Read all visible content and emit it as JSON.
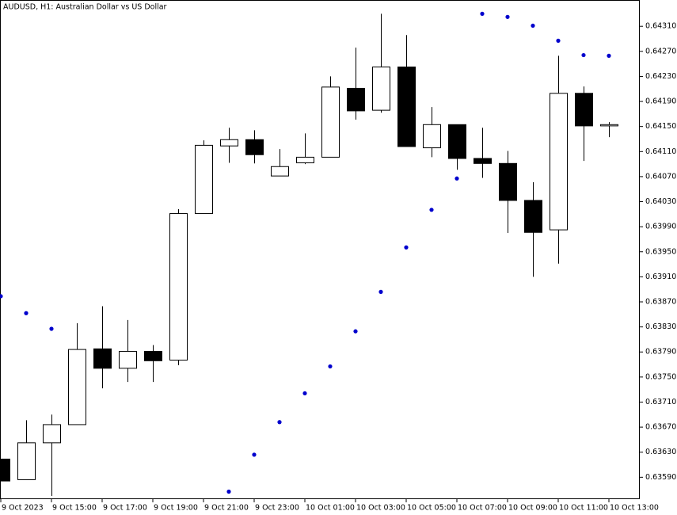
{
  "chart_data": {
    "type": "candlestick",
    "title": "AUDUSD, H1:  Australian Dollar vs US Dollar",
    "categories": [
      "9 Oct 2023",
      null,
      "9 Oct 15:00",
      null,
      "9 Oct 17:00",
      null,
      "9 Oct 19:00",
      null,
      "9 Oct 21:00",
      null,
      "9 Oct 23:00",
      null,
      "10 Oct 01:00",
      null,
      "10 Oct 03:00",
      null,
      "10 Oct 05:00",
      null,
      "10 Oct 07:00",
      null,
      "10 Oct 09:00",
      null,
      "10 Oct 11:00",
      null,
      "10 Oct 13:00"
    ],
    "open": [
      0.63619,
      0.63586,
      0.63645,
      0.63674,
      0.63795,
      0.63764,
      0.63791,
      0.63777,
      0.64011,
      0.64119,
      0.64129,
      0.64071,
      0.64092,
      0.64101,
      0.64211,
      0.64176,
      0.64245,
      0.64116,
      0.64153,
      0.64099,
      0.64091,
      0.64032,
      0.63985,
      0.64203,
      0.64151
    ],
    "high": [
      0.63619,
      0.63681,
      0.6369,
      0.63836,
      0.63863,
      0.63841,
      0.63801,
      0.64018,
      0.64128,
      0.64148,
      0.64144,
      0.64114,
      0.64139,
      0.6423,
      0.64276,
      0.6433,
      0.64296,
      0.64181,
      0.64153,
      0.64148,
      0.64111,
      0.64061,
      0.64263,
      0.64214,
      0.64157
    ],
    "low": [
      0.63584,
      0.63586,
      0.6356,
      0.63674,
      0.63732,
      0.63742,
      0.63742,
      0.63769,
      0.64011,
      0.64092,
      0.64091,
      0.64071,
      0.6409,
      0.64101,
      0.64161,
      0.64172,
      0.64118,
      0.64101,
      0.64081,
      0.64068,
      0.6398,
      0.6391,
      0.63931,
      0.64095,
      0.64133
    ],
    "close": [
      0.63584,
      0.63645,
      0.63674,
      0.63794,
      0.63764,
      0.63791,
      0.63776,
      0.64011,
      0.6412,
      0.64129,
      0.64105,
      0.64086,
      0.64101,
      0.64213,
      0.64175,
      0.64245,
      0.64118,
      0.64153,
      0.64099,
      0.64091,
      0.64032,
      0.63981,
      0.64203,
      0.64151,
      0.64153
    ],
    "up_color": "#ffffff",
    "down_color": "#000000",
    "indicator": {
      "type": "dots",
      "color": "#0000cd",
      "values": [
        0.63879,
        0.63852,
        0.63827,
        null,
        null,
        null,
        null,
        null,
        null,
        0.63567,
        0.63626,
        0.63678,
        0.63724,
        0.63767,
        0.63823,
        0.63886,
        0.63957,
        0.64017,
        0.64067,
        0.6433,
        0.64325,
        0.64311,
        0.64287,
        0.64264,
        0.64263
      ]
    },
    "ylim": [
      0.63555,
      0.64352
    ],
    "yticks": [
      {
        "value": 0.6431,
        "label": "0.64310"
      },
      {
        "value": 0.6427,
        "label": "0.64270"
      },
      {
        "value": 0.6423,
        "label": "0.64230"
      },
      {
        "value": 0.6419,
        "label": "0.64190"
      },
      {
        "value": 0.6415,
        "label": "0.64150"
      },
      {
        "value": 0.6411,
        "label": "0.64110"
      },
      {
        "value": 0.6407,
        "label": "0.64070"
      },
      {
        "value": 0.6403,
        "label": "0.64030"
      },
      {
        "value": 0.6399,
        "label": "0.63990"
      },
      {
        "value": 0.6395,
        "label": "0.63950"
      },
      {
        "value": 0.6391,
        "label": "0.63910"
      },
      {
        "value": 0.6387,
        "label": "0.63870"
      },
      {
        "value": 0.6383,
        "label": "0.63830"
      },
      {
        "value": 0.6379,
        "label": "0.63790"
      },
      {
        "value": 0.6375,
        "label": "0.63750"
      },
      {
        "value": 0.6371,
        "label": "0.63710"
      },
      {
        "value": 0.6367,
        "label": "0.63670"
      },
      {
        "value": 0.6363,
        "label": "0.63630"
      },
      {
        "value": 0.6359,
        "label": "0.63590"
      }
    ],
    "grid": false
  }
}
